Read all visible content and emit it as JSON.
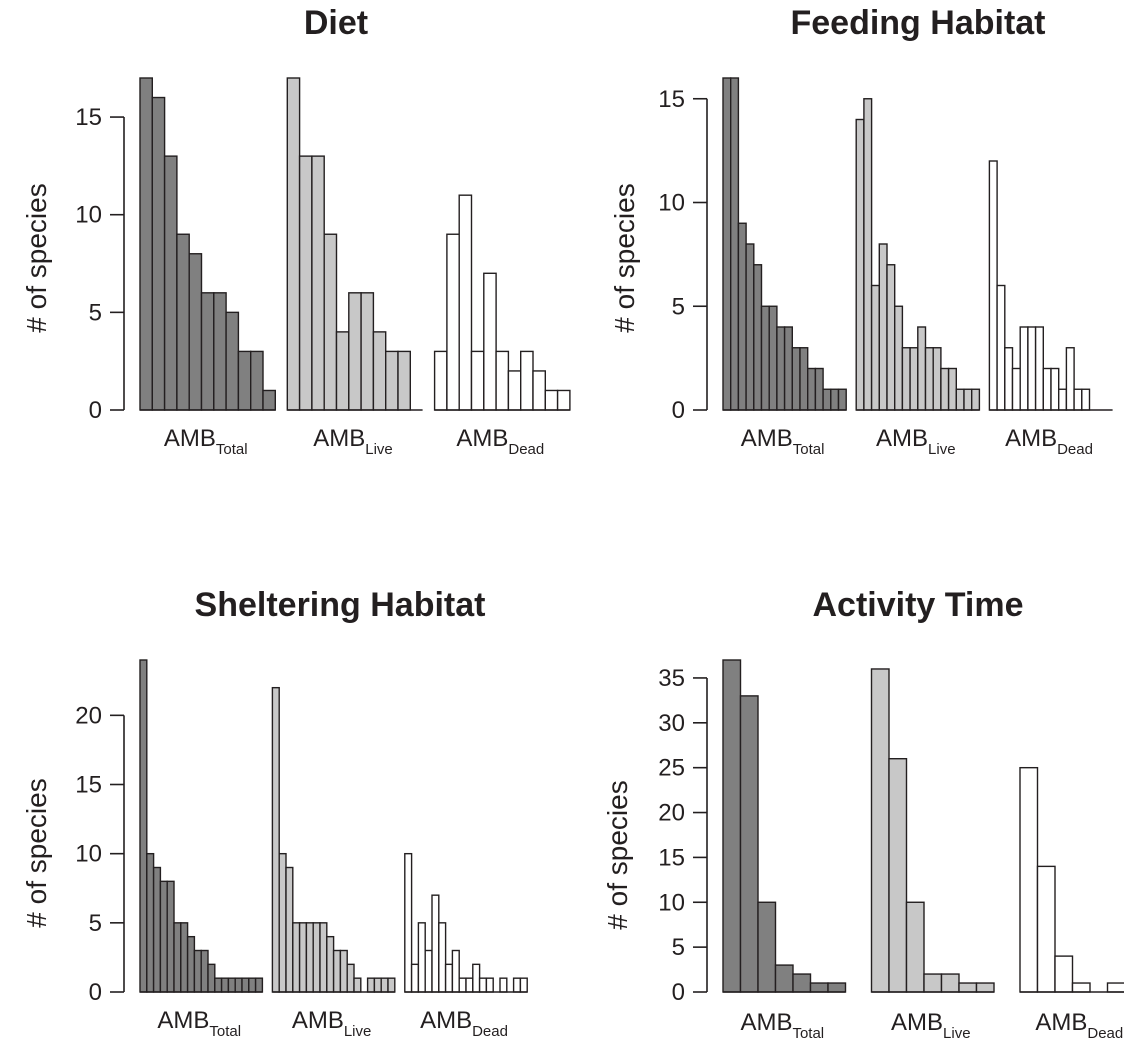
{
  "colors": {
    "total": "#808080",
    "live": "#c8c8c8",
    "dead": "#ffffff",
    "stroke": "#231f20"
  },
  "chart_data": [
    {
      "type": "bar",
      "title": "Diet",
      "ylabel": "# of species",
      "ylim": [
        0,
        17
      ],
      "yticks": [
        0,
        5,
        10,
        15
      ],
      "series": [
        {
          "label": "AMB",
          "sub": "Total",
          "values": [
            17,
            16,
            13,
            9,
            8,
            6,
            6,
            5,
            3,
            3,
            1
          ]
        },
        {
          "label": "AMB",
          "sub": "Live",
          "values": [
            17,
            13,
            13,
            9,
            4,
            6,
            6,
            4,
            3,
            3,
            0
          ]
        },
        {
          "label": "AMB",
          "sub": "Dead",
          "values": [
            3,
            9,
            11,
            3,
            7,
            3,
            2,
            3,
            2,
            1,
            1
          ]
        }
      ]
    },
    {
      "type": "bar",
      "title": "Feeding Habitat",
      "ylabel": "# of species",
      "ylim": [
        0,
        16
      ],
      "yticks": [
        0,
        5,
        10,
        15
      ],
      "series": [
        {
          "label": "AMB",
          "sub": "Total",
          "values": [
            16,
            16,
            9,
            8,
            7,
            5,
            5,
            4,
            4,
            3,
            3,
            2,
            2,
            1,
            1,
            1
          ]
        },
        {
          "label": "AMB",
          "sub": "Live",
          "values": [
            14,
            15,
            6,
            8,
            7,
            5,
            3,
            3,
            4,
            3,
            3,
            2,
            2,
            1,
            1,
            1
          ]
        },
        {
          "label": "AMB",
          "sub": "Dead",
          "values": [
            12,
            6,
            3,
            2,
            4,
            4,
            4,
            2,
            2,
            1,
            3,
            1,
            1,
            0,
            0,
            0
          ]
        }
      ]
    },
    {
      "type": "bar",
      "title": "Sheltering Habitat",
      "ylabel": "# of species",
      "ylim": [
        0,
        24
      ],
      "yticks": [
        0,
        5,
        10,
        15,
        20
      ],
      "series": [
        {
          "label": "AMB",
          "sub": "Total",
          "values": [
            24,
            10,
            9,
            8,
            8,
            5,
            5,
            4,
            3,
            3,
            2,
            1,
            1,
            1,
            1,
            1,
            1,
            1
          ]
        },
        {
          "label": "AMB",
          "sub": "Live",
          "values": [
            22,
            10,
            9,
            5,
            5,
            5,
            5,
            5,
            4,
            3,
            3,
            2,
            1,
            0,
            1,
            1,
            1,
            1
          ]
        },
        {
          "label": "AMB",
          "sub": "Dead",
          "values": [
            10,
            2,
            5,
            3,
            7,
            5,
            2,
            3,
            1,
            1,
            2,
            1,
            1,
            0,
            1,
            0,
            1,
            1
          ]
        }
      ]
    },
    {
      "type": "bar",
      "title": "Activity Time",
      "ylabel": "# of species",
      "ylim": [
        0,
        37
      ],
      "yticks": [
        0,
        5,
        10,
        15,
        20,
        25,
        30,
        35
      ],
      "series": [
        {
          "label": "AMB",
          "sub": "Total",
          "values": [
            37,
            33,
            10,
            3,
            2,
            1,
            1
          ]
        },
        {
          "label": "AMB",
          "sub": "Live",
          "values": [
            36,
            26,
            10,
            2,
            2,
            1,
            1
          ]
        },
        {
          "label": "AMB",
          "sub": "Dead",
          "values": [
            25,
            14,
            4,
            1,
            0,
            1,
            0
          ]
        }
      ]
    }
  ]
}
